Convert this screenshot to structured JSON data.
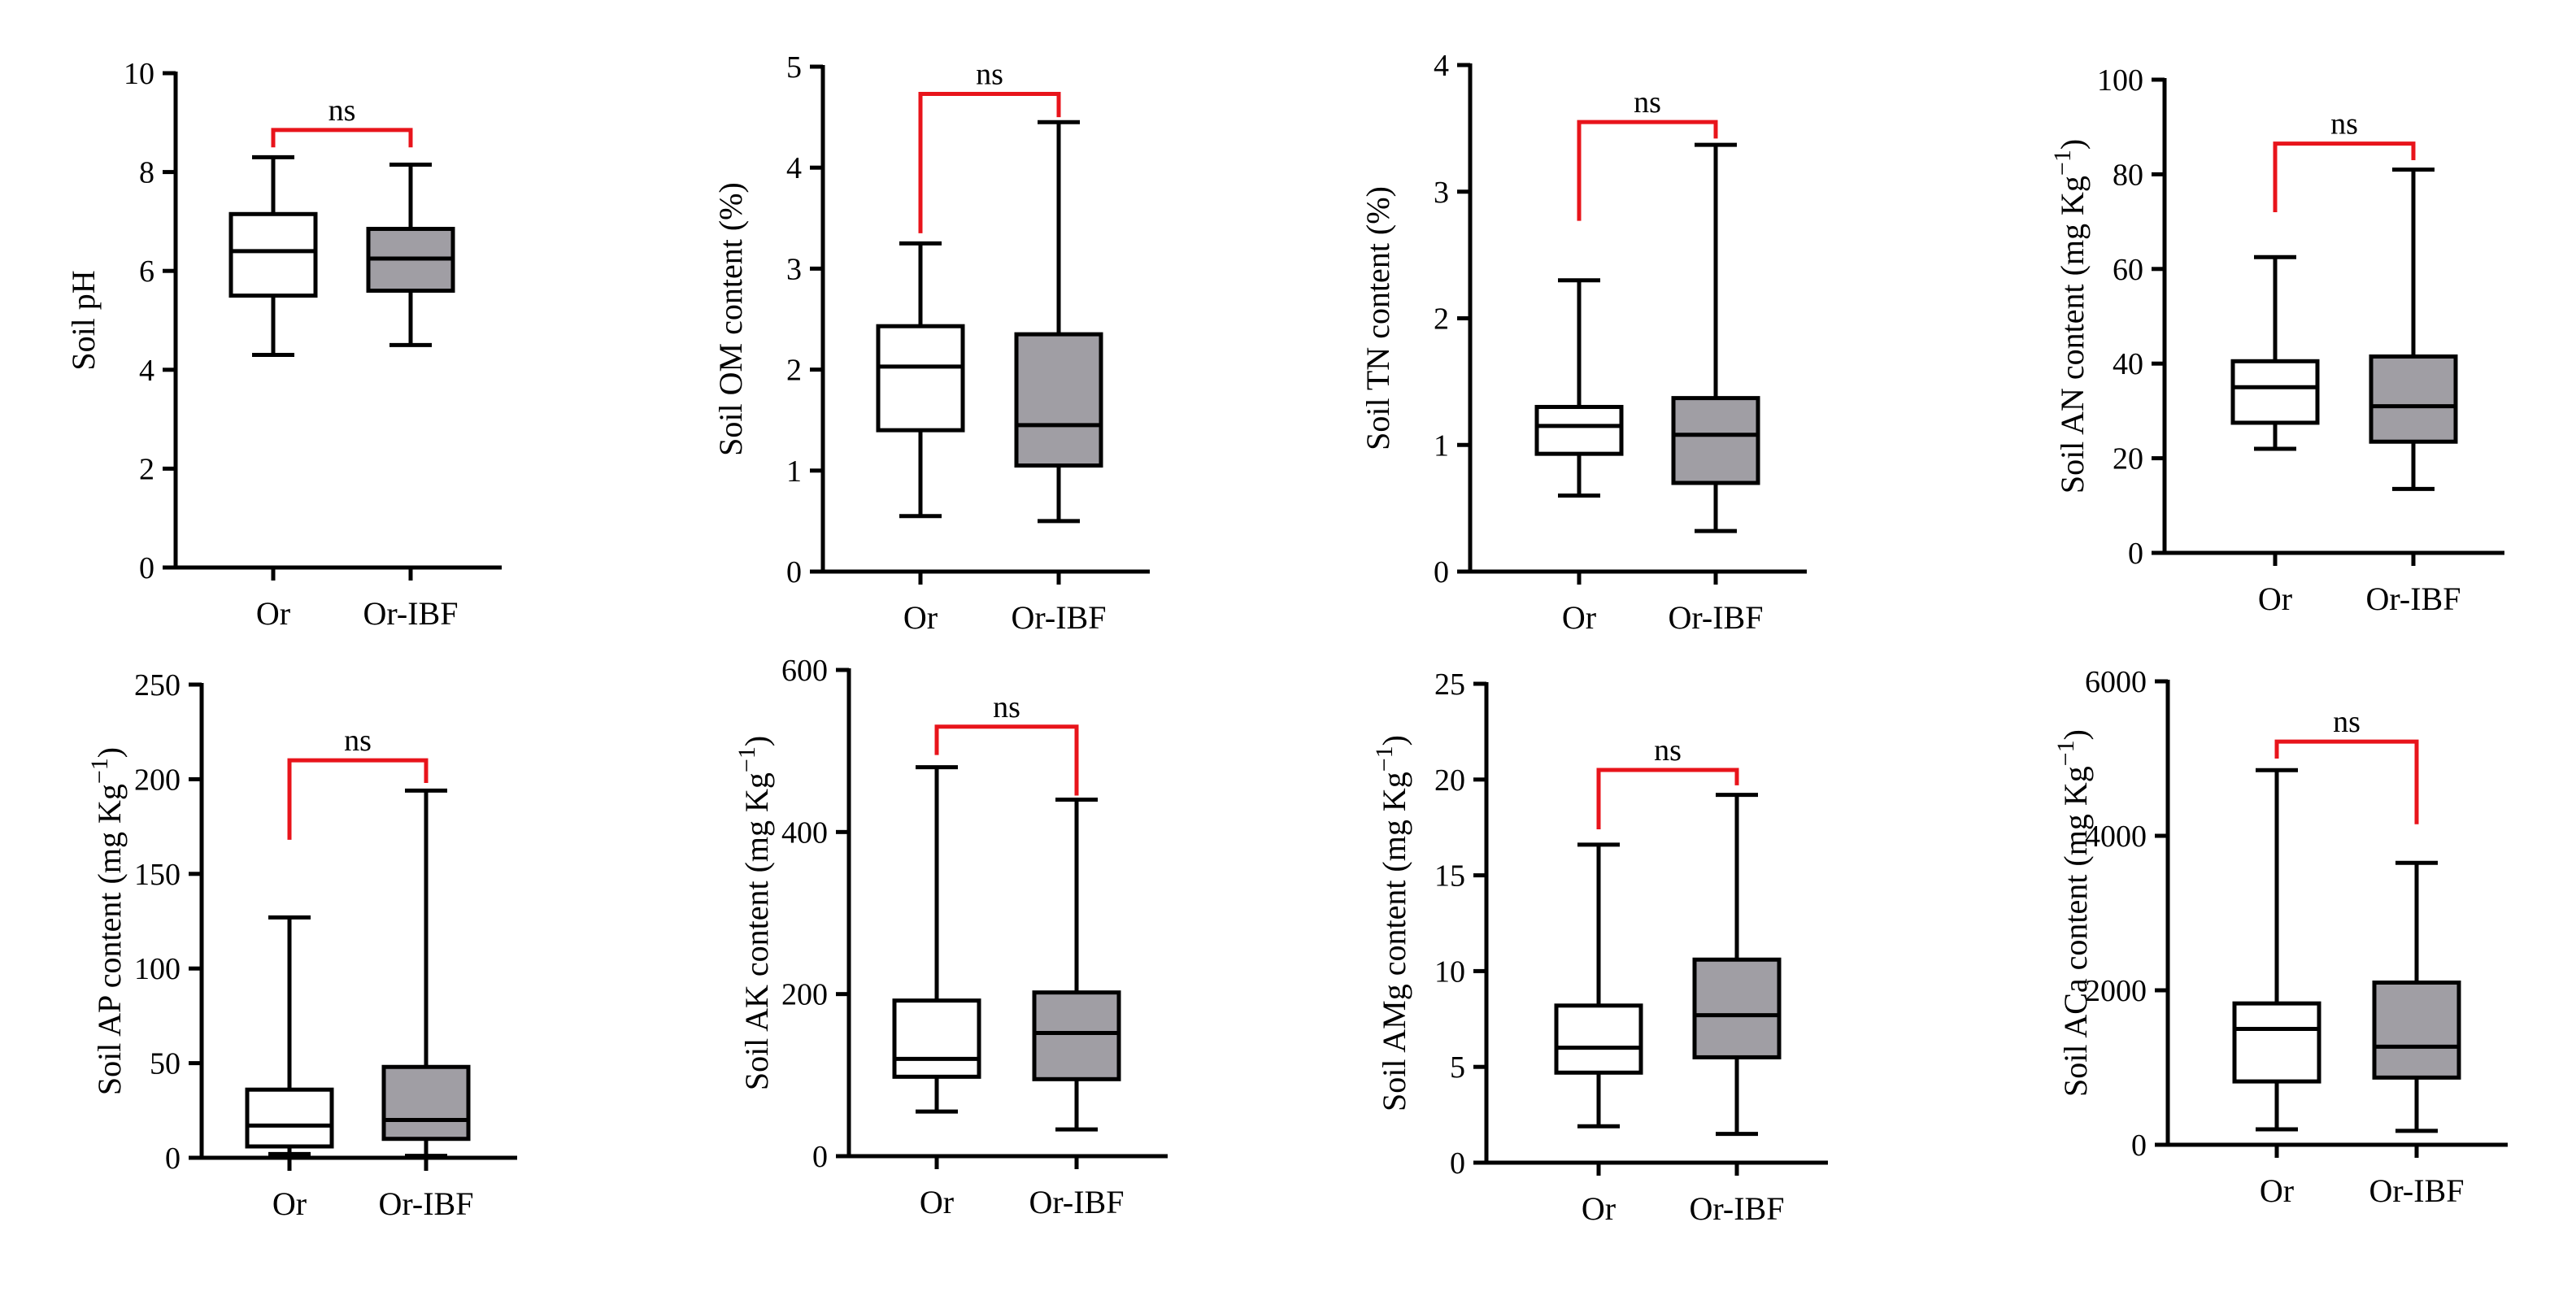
{
  "chart_data": [
    {
      "type": "boxplot",
      "ylabel": "Soil pH",
      "ylabel_main": "Soil pH",
      "ylabel_unit": "",
      "ylim": [
        0,
        10
      ],
      "yticks": [
        0,
        2,
        4,
        6,
        8,
        10
      ],
      "categories": [
        "Or",
        "Or-IBF"
      ],
      "boxes": [
        {
          "name": "Or",
          "min": 4.3,
          "q1": 5.5,
          "median": 6.4,
          "q3": 7.15,
          "max": 8.3
        },
        {
          "name": "Or-IBF",
          "min": 4.5,
          "q1": 5.6,
          "median": 6.25,
          "q3": 6.85,
          "max": 8.15
        }
      ],
      "significance": {
        "label": "ns",
        "left_start": 8.5,
        "right_start": 8.5,
        "top": 8.85
      },
      "colors": {
        "Or": "#ffffff",
        "Or-IBF": "#a09ea4",
        "bracket": "#e8141b"
      }
    },
    {
      "type": "boxplot",
      "ylabel": "Soil OM content (%)",
      "ylabel_main": "Soil OM content (%)",
      "ylabel_unit": "",
      "ylim": [
        0,
        5
      ],
      "yticks": [
        0,
        1,
        2,
        3,
        4,
        5
      ],
      "categories": [
        "Or",
        "Or-IBF"
      ],
      "boxes": [
        {
          "name": "Or",
          "min": 0.55,
          "q1": 1.4,
          "median": 2.03,
          "q3": 2.43,
          "max": 3.25
        },
        {
          "name": "Or-IBF",
          "min": 0.5,
          "q1": 1.05,
          "median": 1.45,
          "q3": 2.35,
          "max": 4.45
        }
      ],
      "significance": {
        "label": "ns",
        "left_start": 3.35,
        "right_start": 4.5,
        "top": 4.73
      },
      "colors": {
        "Or": "#ffffff",
        "Or-IBF": "#a09ea4",
        "bracket": "#e8141b"
      }
    },
    {
      "type": "boxplot",
      "ylabel": "Soil TN content (%)",
      "ylabel_main": "Soil TN content (%)",
      "ylabel_unit": "",
      "ylim": [
        0,
        4
      ],
      "yticks": [
        0,
        1,
        2,
        3,
        4
      ],
      "categories": [
        "Or",
        "Or-IBF"
      ],
      "boxes": [
        {
          "name": "Or",
          "min": 0.6,
          "q1": 0.93,
          "median": 1.15,
          "q3": 1.3,
          "max": 2.3
        },
        {
          "name": "Or-IBF",
          "min": 0.32,
          "q1": 0.7,
          "median": 1.08,
          "q3": 1.37,
          "max": 3.37
        }
      ],
      "significance": {
        "label": "ns",
        "left_start": 2.77,
        "right_start": 3.42,
        "top": 3.55
      },
      "colors": {
        "Or": "#ffffff",
        "Or-IBF": "#a09ea4",
        "bracket": "#e8141b"
      }
    },
    {
      "type": "boxplot",
      "ylabel": "Soil AN content (mg Kg−1)",
      "ylabel_main": "Soil AN content (mg Kg",
      "ylabel_unit": "−1",
      "ylim": [
        0,
        100
      ],
      "yticks": [
        0,
        20,
        40,
        60,
        80,
        100
      ],
      "categories": [
        "Or",
        "Or-IBF"
      ],
      "boxes": [
        {
          "name": "Or",
          "min": 22,
          "q1": 27.5,
          "median": 35,
          "q3": 40.5,
          "max": 62.5
        },
        {
          "name": "Or-IBF",
          "min": 13.5,
          "q1": 23.5,
          "median": 31,
          "q3": 41.5,
          "max": 81
        }
      ],
      "significance": {
        "label": "ns",
        "left_start": 72,
        "right_start": 83,
        "top": 86.5
      },
      "colors": {
        "Or": "#ffffff",
        "Or-IBF": "#a09ea4",
        "bracket": "#e8141b"
      }
    },
    {
      "type": "boxplot",
      "ylabel": "Soil AP content (mg Kg−1)",
      "ylabel_main": "Soil AP content (mg Kg",
      "ylabel_unit": "−1",
      "ylim": [
        0,
        250
      ],
      "yticks": [
        0,
        50,
        100,
        150,
        200,
        250
      ],
      "categories": [
        "Or",
        "Or-IBF"
      ],
      "boxes": [
        {
          "name": "Or",
          "min": 2,
          "q1": 6,
          "median": 17,
          "q3": 36,
          "max": 127
        },
        {
          "name": "Or-IBF",
          "min": 1,
          "q1": 10,
          "median": 20,
          "q3": 48,
          "max": 194
        }
      ],
      "significance": {
        "label": "ns",
        "left_start": 168,
        "right_start": 198,
        "top": 210
      },
      "colors": {
        "Or": "#ffffff",
        "Or-IBF": "#a09ea4",
        "bracket": "#e8141b"
      }
    },
    {
      "type": "boxplot",
      "ylabel": "Soil AK content (mg Kg−1)",
      "ylabel_main": "Soil AK content (mg Kg",
      "ylabel_unit": "−1",
      "ylim": [
        0,
        600
      ],
      "yticks": [
        0,
        200,
        400,
        600
      ],
      "categories": [
        "Or",
        "Or-IBF"
      ],
      "boxes": [
        {
          "name": "Or",
          "min": 55,
          "q1": 98,
          "median": 120,
          "q3": 192,
          "max": 480
        },
        {
          "name": "Or-IBF",
          "min": 33,
          "q1": 95,
          "median": 152,
          "q3": 202,
          "max": 440
        }
      ],
      "significance": {
        "label": "ns",
        "left_start": 495,
        "right_start": 445,
        "top": 530
      },
      "colors": {
        "Or": "#ffffff",
        "Or-IBF": "#a09ea4",
        "bracket": "#e8141b"
      }
    },
    {
      "type": "boxplot",
      "ylabel": "Soil AMg content (mg Kg−1)",
      "ylabel_main": "Soil AMg content (mg Kg",
      "ylabel_unit": "−1",
      "ylim": [
        0,
        25
      ],
      "yticks": [
        0,
        5,
        10,
        15,
        20,
        25
      ],
      "categories": [
        "Or",
        "Or-IBF"
      ],
      "boxes": [
        {
          "name": "Or",
          "min": 1.9,
          "q1": 4.7,
          "median": 6,
          "q3": 8.2,
          "max": 16.6
        },
        {
          "name": "Or-IBF",
          "min": 1.5,
          "q1": 5.5,
          "median": 7.7,
          "q3": 10.6,
          "max": 19.2
        }
      ],
      "significance": {
        "label": "ns",
        "left_start": 17.4,
        "right_start": 19.7,
        "top": 20.5
      },
      "colors": {
        "Or": "#ffffff",
        "Or-IBF": "#a09ea4",
        "bracket": "#e8141b"
      }
    },
    {
      "type": "boxplot",
      "ylabel": "Soil ACa content (mg Kg−1)",
      "ylabel_main": "Soil ACa content (mg Kg",
      "ylabel_unit": "−1",
      "ylim": [
        0,
        6000
      ],
      "yticks": [
        0,
        2000,
        4000,
        6000
      ],
      "categories": [
        "Or",
        "Or-IBF"
      ],
      "boxes": [
        {
          "name": "Or",
          "min": 200,
          "q1": 820,
          "median": 1500,
          "q3": 1830,
          "max": 4850
        },
        {
          "name": "Or-IBF",
          "min": 180,
          "q1": 870,
          "median": 1270,
          "q3": 2100,
          "max": 3650
        }
      ],
      "significance": {
        "label": "ns",
        "left_start": 5000,
        "right_start": 4150,
        "top": 5220
      },
      "colors": {
        "Or": "#ffffff",
        "Or-IBF": "#a09ea4",
        "bracket": "#e8141b"
      }
    }
  ]
}
